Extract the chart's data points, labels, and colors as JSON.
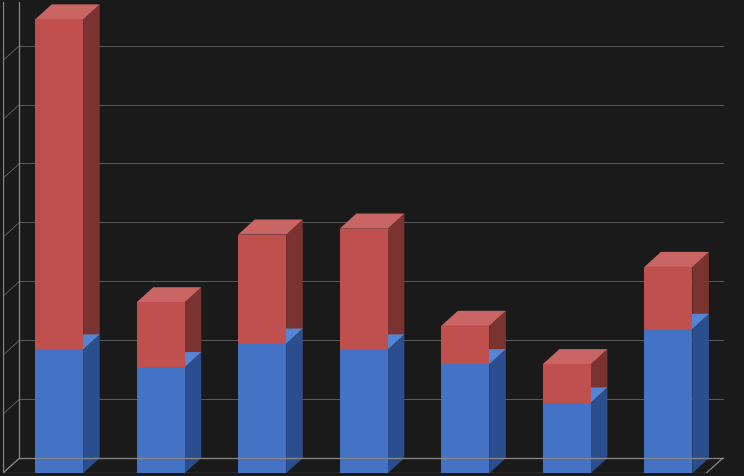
{
  "blue_values": [
    210,
    180,
    220,
    210,
    185,
    120,
    245
  ],
  "red_values": [
    560,
    110,
    185,
    205,
    65,
    65,
    105
  ],
  "bar_color_blue": "#4472C4",
  "bar_color_red": "#C0504D",
  "bar_color_blue_dark": "#2B4F8E",
  "bar_color_red_dark": "#7B3330",
  "bar_color_blue_top": "#5585D5",
  "bar_color_red_top": "#C96663",
  "background_color": "#1a1a1a",
  "grid_color": "#666666",
  "ylim": [
    0,
    800
  ],
  "n_bars": 7,
  "bar_width": 0.52
}
